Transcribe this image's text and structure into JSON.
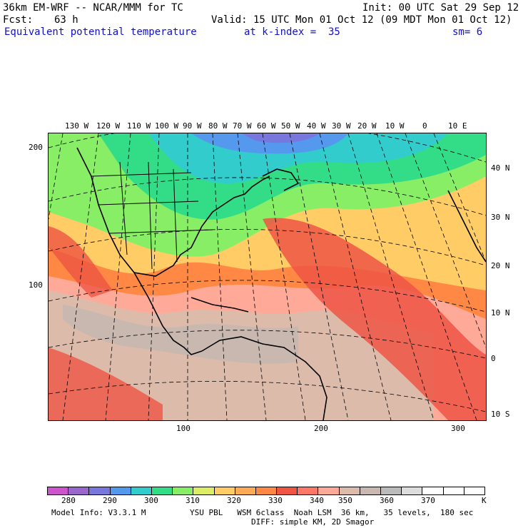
{
  "header": {
    "model": "36km EM-WRF -- NCAR/MMM for TC",
    "init": "Init: 00 UTC Sat 29 Sep 12",
    "fcst_label": "Fcst:",
    "fcst_value": "63 h",
    "valid": "Valid: 15 UTC Mon 01 Oct 12 (09 MDT Mon 01 Oct 12)",
    "field": "Equivalent potential temperature",
    "level": "at k-index =  35",
    "smoothing": "sm= 6"
  },
  "map": {
    "top_lon_labels": [
      "130 W",
      "120 W",
      "110 W",
      "100 W",
      "90 W",
      "80 W",
      "70 W",
      "60 W",
      "50 W",
      "40 W",
      "30 W",
      "20 W",
      "10 W",
      "0",
      "10 E"
    ],
    "right_lat_labels": [
      "40 N",
      "30 N",
      "20 N",
      "10 N",
      "0",
      "10 S"
    ],
    "left_grid_labels": [
      "200",
      "100"
    ],
    "bottom_grid_labels": [
      "100",
      "200",
      "300"
    ]
  },
  "colorbar": {
    "colors": [
      "#cc55cc",
      "#9966cc",
      "#7777dd",
      "#5599ee",
      "#33cccc",
      "#33dd88",
      "#88ee66",
      "#ddee66",
      "#ffcc66",
      "#ffaa55",
      "#ff8844",
      "#ee5544",
      "#ff7766",
      "#ffaa99",
      "#ddbbaa",
      "#c8b8b0",
      "#bbbbbb",
      "#dddddd",
      "#ffffff",
      "#ffffff",
      "#ffffff"
    ],
    "tick_labels": [
      "280",
      "290",
      "300",
      "310",
      "320",
      "330",
      "340",
      "350",
      "360",
      "370"
    ],
    "unit": "K"
  },
  "footer": {
    "model_info": "Model Info: V3.3.1 M",
    "physics": "YSU PBL   WSM 6class  Noah LSM  36 km,   35 levels,  180 sec",
    "diffusion": "DIFF: simple KM, 2D Smagor"
  }
}
